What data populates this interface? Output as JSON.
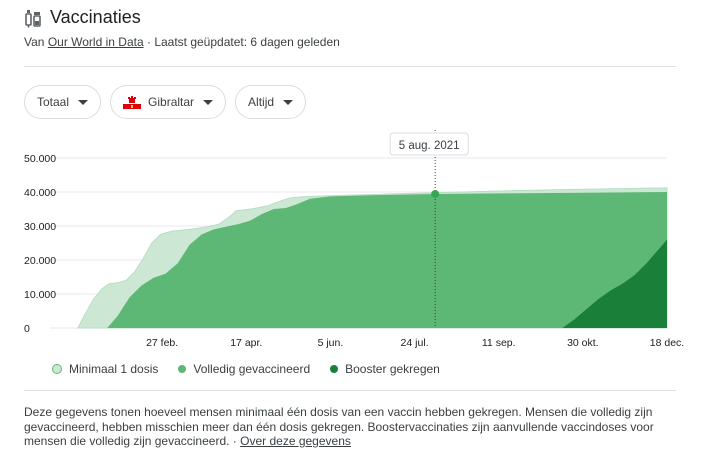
{
  "header": {
    "title": "Vaccinaties",
    "icon": "syringe-vial-icon"
  },
  "source": {
    "prefix": "Van",
    "link": "Our World in Data",
    "separator": "·",
    "updated": "Laatst geüpdatet: 6 dagen geleden"
  },
  "filters": {
    "metric": "Totaal",
    "country": "Gibraltar",
    "country_flag": "gibraltar-flag-icon",
    "period": "Altijd"
  },
  "tooltip": {
    "date": "5 aug. 2021"
  },
  "colors": {
    "min1": "#cce8d4",
    "full": "#5eb875",
    "booster": "#1a8039",
    "grid": "#e8eaed",
    "axis_text": "#202124"
  },
  "chart_data": {
    "type": "area",
    "title": "",
    "xlabel": "",
    "ylabel": "",
    "ylim": [
      0,
      50000
    ],
    "y_ticks": [
      0,
      10000,
      20000,
      30000,
      40000,
      50000
    ],
    "y_tick_labels": [
      "0",
      "10.000",
      "20.000",
      "30.000",
      "40.000",
      "50.000"
    ],
    "x_range": [
      "2021-01-09",
      "2021-12-18"
    ],
    "x_ticks": [
      "2021-02-27",
      "2021-04-17",
      "2021-06-05",
      "2021-07-24",
      "2021-09-11",
      "2021-10-30",
      "2021-12-18"
    ],
    "x_tick_labels": [
      "27 feb.",
      "17 apr.",
      "5 jun.",
      "24 jul.",
      "11 sep.",
      "30 okt.",
      "18 dec."
    ],
    "grid": true,
    "legend_position": "bottom",
    "highlight": {
      "date": "2021-08-05",
      "value": 39400
    },
    "series": [
      {
        "name": "Minimaal 1 dosis",
        "points": [
          [
            "2021-01-09",
            0
          ],
          [
            "2021-01-13",
            4000
          ],
          [
            "2021-01-18",
            8500
          ],
          [
            "2021-01-23",
            11500
          ],
          [
            "2021-01-27",
            13000
          ],
          [
            "2021-02-01",
            13300
          ],
          [
            "2021-02-06",
            14000
          ],
          [
            "2021-02-11",
            16500
          ],
          [
            "2021-02-16",
            20500
          ],
          [
            "2021-02-21",
            25000
          ],
          [
            "2021-02-26",
            27500
          ],
          [
            "2021-03-05",
            28500
          ],
          [
            "2021-03-15",
            29000
          ],
          [
            "2021-03-25",
            29700
          ],
          [
            "2021-04-01",
            30500
          ],
          [
            "2021-04-08",
            33000
          ],
          [
            "2021-04-11",
            34500
          ],
          [
            "2021-04-20",
            35000
          ],
          [
            "2021-04-30",
            36000
          ],
          [
            "2021-05-05",
            37000
          ],
          [
            "2021-05-12",
            38200
          ],
          [
            "2021-05-20",
            38600
          ],
          [
            "2021-06-05",
            38900
          ],
          [
            "2021-07-01",
            39300
          ],
          [
            "2021-08-05",
            39800
          ],
          [
            "2021-09-11",
            40300
          ],
          [
            "2021-10-30",
            40800
          ],
          [
            "2021-12-18",
            41200
          ]
        ]
      },
      {
        "name": "Volledig gevaccineerd",
        "points": [
          [
            "2021-01-26",
            0
          ],
          [
            "2021-02-01",
            3500
          ],
          [
            "2021-02-08",
            9000
          ],
          [
            "2021-02-15",
            12500
          ],
          [
            "2021-02-22",
            14800
          ],
          [
            "2021-03-01",
            16000
          ],
          [
            "2021-03-08",
            19000
          ],
          [
            "2021-03-15",
            24500
          ],
          [
            "2021-03-22",
            27500
          ],
          [
            "2021-03-29",
            29000
          ],
          [
            "2021-04-05",
            29800
          ],
          [
            "2021-04-12",
            30500
          ],
          [
            "2021-04-19",
            31500
          ],
          [
            "2021-04-26",
            33500
          ],
          [
            "2021-05-03",
            35000
          ],
          [
            "2021-05-10",
            35300
          ],
          [
            "2021-05-17",
            36500
          ],
          [
            "2021-05-24",
            38000
          ],
          [
            "2021-06-05",
            38700
          ],
          [
            "2021-07-01",
            39100
          ],
          [
            "2021-08-05",
            39400
          ],
          [
            "2021-09-11",
            39600
          ],
          [
            "2021-10-30",
            39800
          ],
          [
            "2021-12-18",
            40000
          ]
        ]
      },
      {
        "name": "Booster gekregen",
        "points": [
          [
            "2021-10-18",
            0
          ],
          [
            "2021-10-25",
            2500
          ],
          [
            "2021-11-01",
            5500
          ],
          [
            "2021-11-08",
            8500
          ],
          [
            "2021-11-15",
            11000
          ],
          [
            "2021-11-22",
            13000
          ],
          [
            "2021-11-29",
            15500
          ],
          [
            "2021-12-06",
            19000
          ],
          [
            "2021-12-12",
            22500
          ],
          [
            "2021-12-18",
            26000
          ]
        ]
      }
    ]
  },
  "footnote": {
    "text": "Deze gegevens tonen hoeveel mensen minimaal één dosis van een vaccin hebben gekregen. Mensen die volledig zijn gevaccineerd, hebben misschien meer dan één dosis gekregen. Boostervaccinaties zijn aanvullende vaccindoses voor mensen die volledig zijn gevaccineerd.",
    "separator": "·",
    "link": "Over deze gegevens"
  }
}
